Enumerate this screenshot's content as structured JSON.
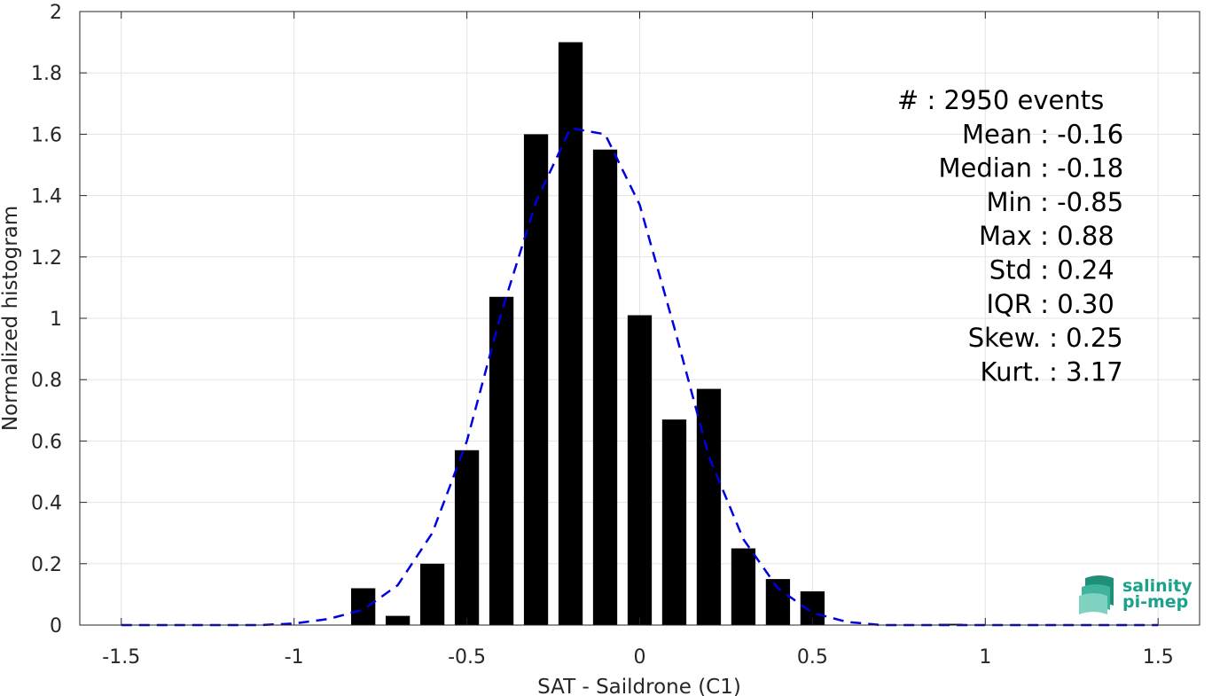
{
  "chart_data": {
    "type": "bar",
    "xlabel": "SAT - Saildrone (C1)",
    "ylabel": "Normalized histogram",
    "xlim": [
      -1.62,
      1.62
    ],
    "ylim": [
      0,
      2
    ],
    "xticks": [
      -1.5,
      -1,
      -0.5,
      0,
      0.5,
      1,
      1.5
    ],
    "xtick_labels": [
      "-1.5",
      "-1",
      "-0.5",
      "0",
      "0.5",
      "1",
      "1.5"
    ],
    "yticks": [
      0,
      0.2,
      0.4,
      0.6,
      0.8,
      1,
      1.2,
      1.4,
      1.6,
      1.8,
      2
    ],
    "ytick_labels": [
      "0",
      "0.2",
      "0.4",
      "0.6",
      "0.8",
      "1",
      "1.2",
      "1.4",
      "1.6",
      "1.8",
      "2"
    ],
    "grid": true,
    "bar_width": 0.07,
    "bar_color": "#000000",
    "bars": [
      {
        "x": -0.8,
        "y": 0.12
      },
      {
        "x": -0.7,
        "y": 0.03
      },
      {
        "x": -0.6,
        "y": 0.2
      },
      {
        "x": -0.5,
        "y": 0.57
      },
      {
        "x": -0.4,
        "y": 1.07
      },
      {
        "x": -0.3,
        "y": 1.6
      },
      {
        "x": -0.2,
        "y": 1.9
      },
      {
        "x": -0.1,
        "y": 1.55
      },
      {
        "x": 0.0,
        "y": 1.01
      },
      {
        "x": 0.1,
        "y": 0.67
      },
      {
        "x": 0.2,
        "y": 0.77
      },
      {
        "x": 0.3,
        "y": 0.25
      },
      {
        "x": 0.4,
        "y": 0.15
      },
      {
        "x": 0.5,
        "y": 0.11
      },
      {
        "x": 0.9,
        "y": 0.004
      }
    ],
    "fit_line": {
      "style": "dashed",
      "color": "#0000e0",
      "x": [
        -1.5,
        -1.4,
        -1.3,
        -1.2,
        -1.1,
        -1.0,
        -0.9,
        -0.8,
        -0.7,
        -0.6,
        -0.5,
        -0.4,
        -0.3,
        -0.2,
        -0.1,
        0.0,
        0.1,
        0.2,
        0.3,
        0.4,
        0.5,
        0.6,
        0.7,
        0.8,
        0.9,
        1.0,
        1.1,
        1.2,
        1.3,
        1.4,
        1.5
      ],
      "y": [
        0.0,
        0.0,
        0.0,
        0.0,
        0.0,
        0.005,
        0.02,
        0.05,
        0.13,
        0.3,
        0.6,
        1.02,
        1.38,
        1.62,
        1.6,
        1.37,
        0.97,
        0.55,
        0.28,
        0.12,
        0.04,
        0.01,
        0.0,
        0.0,
        0.0,
        0.0,
        0.0,
        0.0,
        0.0,
        0.0,
        0.0
      ]
    },
    "annotations": [
      "#  : 2950 events",
      "Mean : -0.16",
      "Median : -0.18",
      "Min : -0.85",
      "Max : 0.88",
      "Std : 0.24",
      "IQR : 0.30",
      "Skew. : 0.25",
      "Kurt. : 3.17"
    ]
  },
  "logo": {
    "line1": "salinity",
    "line2": "pi-mep",
    "color": "#1aa38a"
  }
}
